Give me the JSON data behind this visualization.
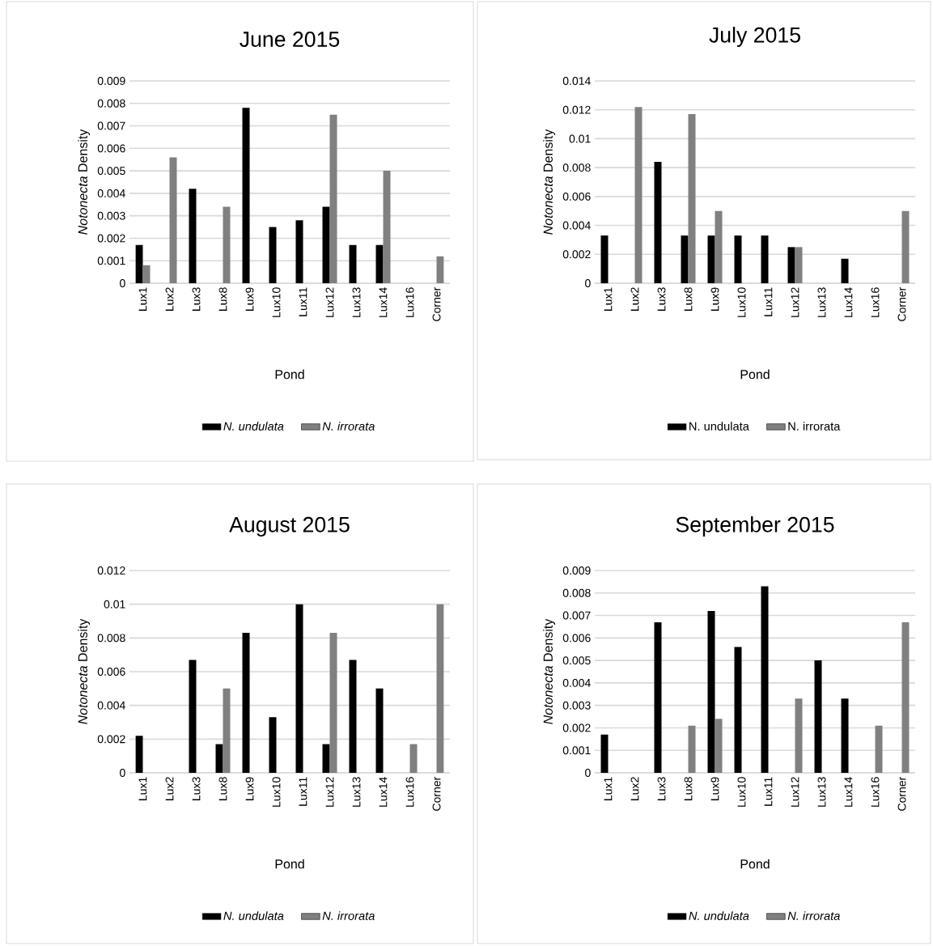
{
  "chart_data": [
    {
      "type": "bar",
      "title": "June 2015",
      "xlabel": "Pond",
      "ylabel": "*Notonecta* Density",
      "categories": [
        "Lux1",
        "Lux2",
        "Lux3",
        "Lux8",
        "Lux9",
        "Lux10",
        "Lux11",
        "Lux12",
        "Lux13",
        "Lux14",
        "Lux16",
        "Corner"
      ],
      "series": [
        {
          "name": "*N. undulata*",
          "color": "#000000",
          "values": [
            0.0017,
            0,
            0.0042,
            0,
            0.0078,
            0.0025,
            0.0028,
            0.0034,
            0.0017,
            0.0017,
            0,
            0
          ]
        },
        {
          "name": "*N. irrorata*",
          "color": "#808080",
          "values": [
            0.0008,
            0.0056,
            0,
            0.0034,
            0,
            0,
            0,
            0.0075,
            0,
            0.005,
            0,
            0.0012
          ]
        }
      ],
      "ylim": [
        0,
        0.009
      ],
      "yticks": [
        0,
        0.001,
        0.002,
        0.003,
        0.004,
        0.005,
        0.006,
        0.007,
        0.008,
        0.009
      ],
      "grid": "y",
      "legend": "bottom"
    },
    {
      "type": "bar",
      "title": "July 2015",
      "xlabel": "Pond",
      "ylabel": "*Notonecta* Density",
      "categories": [
        "Lux1",
        "Lux2",
        "Lux3",
        "Lux8",
        "Lux9",
        "Lux10",
        "Lux11",
        "Lux12",
        "Lux13",
        "Lux14",
        "Lux16",
        "Corner"
      ],
      "series": [
        {
          "name": "N. undulata",
          "color": "#000000",
          "values": [
            0.0033,
            0,
            0.0084,
            0.0033,
            0.0033,
            0.0033,
            0.0033,
            0.0025,
            0,
            0.0017,
            0,
            0
          ]
        },
        {
          "name": "N. irrorata",
          "color": "#808080",
          "values": [
            0,
            0.0122,
            0,
            0.0117,
            0.005,
            0,
            0,
            0.0025,
            0,
            0,
            0,
            0.005
          ]
        }
      ],
      "ylim": [
        0,
        0.014
      ],
      "yticks": [
        0,
        0.002,
        0.004,
        0.006,
        0.008,
        0.01,
        0.012,
        0.014
      ],
      "grid": "y",
      "legend": "bottom"
    },
    {
      "type": "bar",
      "title": "August 2015",
      "xlabel": "Pond",
      "ylabel": "*Notonecta* Density",
      "categories": [
        "Lux1",
        "Lux2",
        "Lux3",
        "Lux8",
        "Lux9",
        "Lux10",
        "Lux11",
        "Lux12",
        "Lux13",
        "Lux14",
        "Lux16",
        "Corner"
      ],
      "series": [
        {
          "name": "*N. undulata*",
          "color": "#000000",
          "values": [
            0.0022,
            0,
            0.0067,
            0.0017,
            0.0083,
            0.0033,
            0.01,
            0.0017,
            0.0067,
            0.005,
            0,
            0
          ]
        },
        {
          "name": "*N. irrorata*",
          "color": "#808080",
          "values": [
            0,
            0,
            0,
            0.005,
            0,
            0,
            0,
            0.0083,
            0,
            0,
            0.0017,
            0.01
          ]
        }
      ],
      "ylim": [
        0,
        0.012
      ],
      "yticks": [
        0,
        0.002,
        0.004,
        0.006,
        0.008,
        0.01,
        0.012
      ],
      "grid": "y",
      "legend": "bottom"
    },
    {
      "type": "bar",
      "title": "September 2015",
      "xlabel": "Pond",
      "ylabel": "*Notonecta* Density",
      "categories": [
        "Lux1",
        "Lux2",
        "Lux3",
        "Lux8",
        "Lux9",
        "Lux10",
        "Lux11",
        "Lux12",
        "Lux13",
        "Lux14",
        "Lux16",
        "Corner"
      ],
      "series": [
        {
          "name": "*N. undulata*",
          "color": "#000000",
          "values": [
            0.0017,
            0,
            0.0067,
            0,
            0.0072,
            0.0056,
            0.0083,
            0,
            0.005,
            0.0033,
            0,
            0
          ]
        },
        {
          "name": "*N. irrorata*",
          "color": "#808080",
          "values": [
            0,
            0,
            0,
            0.0021,
            0.0024,
            0,
            0,
            0.0033,
            0,
            0,
            0.0021,
            0.0067
          ]
        }
      ],
      "ylim": [
        0,
        0.009
      ],
      "yticks": [
        0,
        0.001,
        0.002,
        0.003,
        0.004,
        0.005,
        0.006,
        0.007,
        0.008,
        0.009
      ],
      "grid": "y",
      "legend": "bottom"
    }
  ]
}
